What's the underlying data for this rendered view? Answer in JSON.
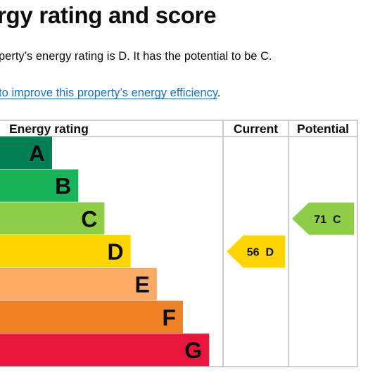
{
  "page": {
    "title": "rgy rating and score",
    "summary": "perty’s energy rating is D. It has the potential to be C.",
    "improve_link": "to improve this property’s energy efficiency",
    "improve_suffix": "."
  },
  "chart_data": {
    "type": "table",
    "columns": [
      "Energy rating",
      "Current",
      "Potential"
    ],
    "bands": [
      {
        "letter": "A",
        "color": "#008054"
      },
      {
        "letter": "B",
        "color": "#19b459"
      },
      {
        "letter": "C",
        "color": "#8dce46"
      },
      {
        "letter": "D",
        "color": "#ffd500"
      },
      {
        "letter": "E",
        "color": "#fcaa65"
      },
      {
        "letter": "F",
        "color": "#ef8023"
      },
      {
        "letter": "G",
        "color": "#e9153b"
      }
    ],
    "current": {
      "score": "56",
      "band": "D",
      "color": "#ffd500"
    },
    "potential": {
      "score": "71",
      "band": "C",
      "color": "#8dce46"
    }
  }
}
